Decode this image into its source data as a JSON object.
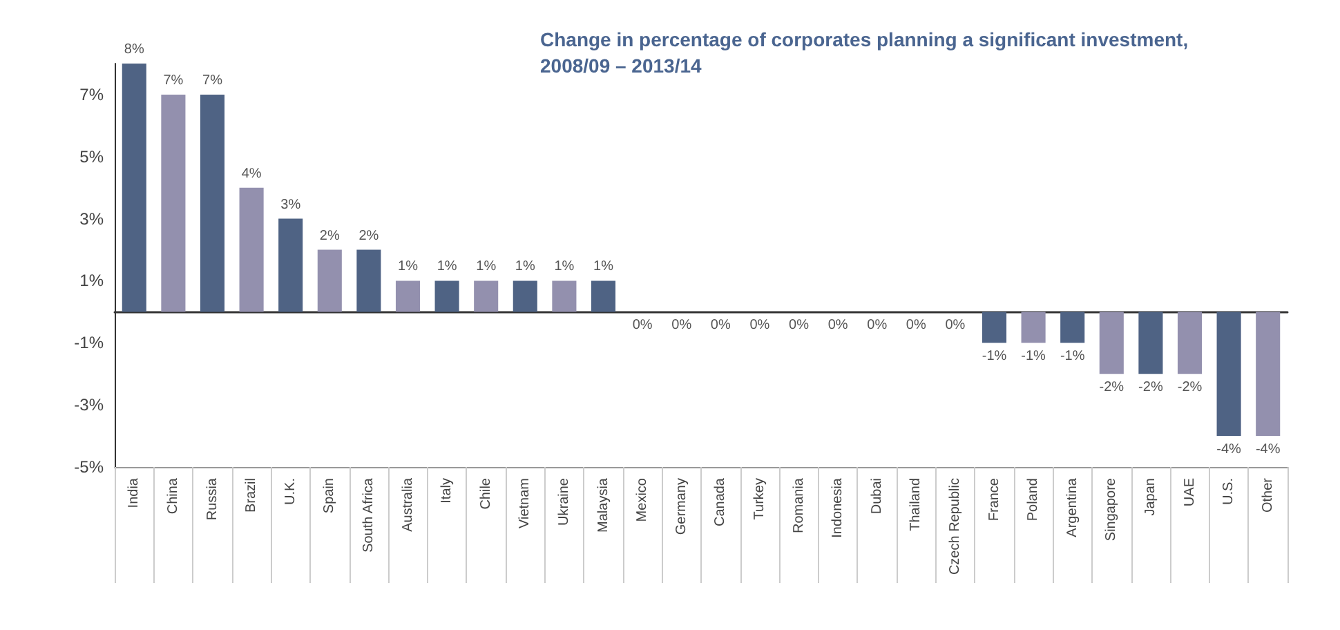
{
  "chart_data": {
    "type": "bar",
    "title": "Change in percentage of corporates planning a significant investment,\n2008/09 – 2013/14",
    "categories": [
      "India",
      "China",
      "Russia",
      "Brazil",
      "U.K.",
      "Spain",
      "South Africa",
      "Australia",
      "Italy",
      "Chile",
      "Vietnam",
      "Ukraine",
      "Malaysia",
      "Mexico",
      "Germany",
      "Canada",
      "Turkey",
      "Romania",
      "Indonesia",
      "Dubai",
      "Thailand",
      "Czech Republic",
      "France",
      "Poland",
      "Argentina",
      "Singapore",
      "Japan",
      "UAE",
      "U.S.",
      "Other"
    ],
    "values": [
      8,
      7,
      7,
      4,
      3,
      2,
      2,
      1,
      1,
      1,
      1,
      1,
      1,
      0,
      0,
      0,
      0,
      0,
      0,
      0,
      0,
      0,
      -1,
      -1,
      -1,
      -2,
      -2,
      -2,
      -4,
      -4
    ],
    "colors": [
      "#4f6384",
      "#9390ae",
      "#4f6384",
      "#9390ae",
      "#4f6384",
      "#9390ae",
      "#4f6384",
      "#9390ae",
      "#4f6384",
      "#9390ae",
      "#4f6384",
      "#9390ae",
      "#4f6384",
      "#9390ae",
      "#4f6384",
      "#9390ae",
      "#4f6384",
      "#9390ae",
      "#4f6384",
      "#9390ae",
      "#4f6384",
      "#9390ae",
      "#4f6384",
      "#9390ae",
      "#4f6384",
      "#9390ae",
      "#4f6384",
      "#9390ae",
      "#4f6384",
      "#9390ae"
    ],
    "ylim": [
      -5,
      8
    ],
    "yticks": [
      {
        "value": -5,
        "label": "-5%"
      },
      {
        "value": -3,
        "label": "-3%"
      },
      {
        "value": -1,
        "label": "-1%"
      },
      {
        "value": 1,
        "label": "1%"
      },
      {
        "value": 3,
        "label": "3%"
      },
      {
        "value": 5,
        "label": "5%"
      },
      {
        "value": 7,
        "label": "7%"
      }
    ],
    "value_labels": [
      "8%",
      "7%",
      "7%",
      "4%",
      "3%",
      "2%",
      "2%",
      "1%",
      "1%",
      "1%",
      "1%",
      "1%",
      "1%",
      "0%",
      "0%",
      "0%",
      "0%",
      "0%",
      "0%",
      "0%",
      "0%",
      "0%",
      "-1%",
      "-1%",
      "-1%",
      "-2%",
      "-2%",
      "-2%",
      "-4%",
      "-4%"
    ]
  }
}
